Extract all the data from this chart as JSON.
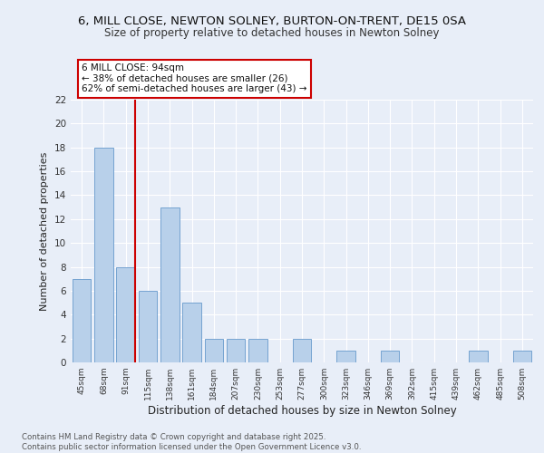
{
  "title": "6, MILL CLOSE, NEWTON SOLNEY, BURTON-ON-TRENT, DE15 0SA",
  "subtitle": "Size of property relative to detached houses in Newton Solney",
  "xlabel": "Distribution of detached houses by size in Newton Solney",
  "ylabel": "Number of detached properties",
  "categories": [
    "45sqm",
    "68sqm",
    "91sqm",
    "115sqm",
    "138sqm",
    "161sqm",
    "184sqm",
    "207sqm",
    "230sqm",
    "253sqm",
    "277sqm",
    "300sqm",
    "323sqm",
    "346sqm",
    "369sqm",
    "392sqm",
    "415sqm",
    "439sqm",
    "462sqm",
    "485sqm",
    "508sqm"
  ],
  "values": [
    7,
    18,
    8,
    6,
    13,
    5,
    2,
    2,
    2,
    0,
    2,
    0,
    1,
    0,
    1,
    0,
    0,
    0,
    1,
    0,
    1
  ],
  "bar_color": "#b8d0ea",
  "bar_edge_color": "#6699cc",
  "highlight_x": "91sqm",
  "highlight_color": "#cc0000",
  "ylim": [
    0,
    22
  ],
  "yticks": [
    0,
    2,
    4,
    6,
    8,
    10,
    12,
    14,
    16,
    18,
    20,
    22
  ],
  "annotation_title": "6 MILL CLOSE: 94sqm",
  "annotation_line1": "← 38% of detached houses are smaller (26)",
  "annotation_line2": "62% of semi-detached houses are larger (43) →",
  "annotation_box_color": "#ffffff",
  "annotation_box_edge": "#cc0000",
  "bg_color": "#e8eef8",
  "grid_color": "#ffffff",
  "footer": "Contains HM Land Registry data © Crown copyright and database right 2025.\nContains public sector information licensed under the Open Government Licence v3.0."
}
